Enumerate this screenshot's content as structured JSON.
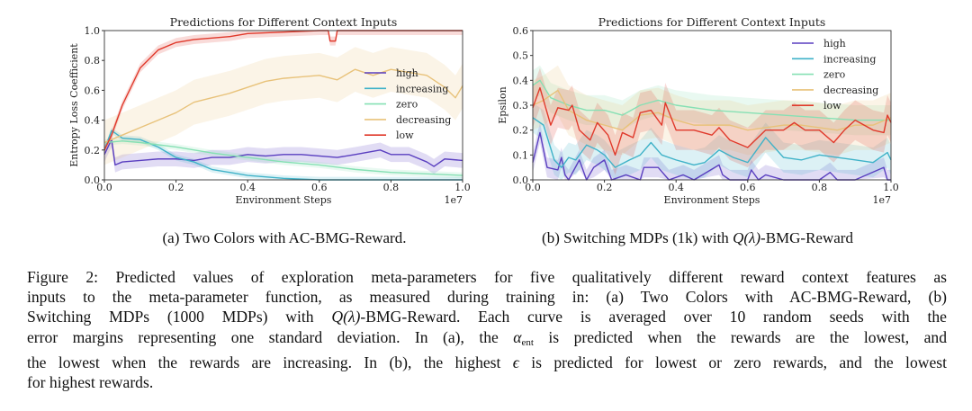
{
  "chart_data": [
    {
      "type": "line",
      "title": "Predictions for Different Context Inputs",
      "xlabel": "Environment Steps",
      "ylabel": "Entropy Loss Coefficient",
      "x_multiplier_label": "1e7",
      "xlim": [
        0,
        1.0
      ],
      "ylim": [
        0,
        1.0
      ],
      "xticks": [
        "0.0",
        "0.2",
        "0.4",
        "0.6",
        "0.8",
        "1.0"
      ],
      "yticks": [
        "0.0",
        "0.2",
        "0.4",
        "0.6",
        "0.8",
        "1.0"
      ],
      "grid": false,
      "legend_position": "center-right",
      "series": [
        {
          "name": "high",
          "color": "#5a3fc0",
          "std": 0.05,
          "x": [
            0,
            0.02,
            0.03,
            0.05,
            0.1,
            0.15,
            0.2,
            0.25,
            0.3,
            0.35,
            0.4,
            0.45,
            0.5,
            0.55,
            0.6,
            0.65,
            0.7,
            0.77,
            0.8,
            0.85,
            0.9,
            0.92,
            0.95,
            1.0
          ],
          "y": [
            0.17,
            0.27,
            0.1,
            0.12,
            0.13,
            0.14,
            0.14,
            0.13,
            0.15,
            0.15,
            0.17,
            0.16,
            0.17,
            0.17,
            0.16,
            0.15,
            0.17,
            0.2,
            0.17,
            0.17,
            0.12,
            0.09,
            0.14,
            0.13
          ]
        },
        {
          "name": "increasing",
          "color": "#3fb2c8",
          "std": 0.02,
          "x": [
            0,
            0.02,
            0.05,
            0.1,
            0.15,
            0.2,
            0.25,
            0.3,
            0.35,
            0.4,
            0.5,
            0.6,
            0.8,
            1.0
          ],
          "y": [
            0.2,
            0.33,
            0.28,
            0.27,
            0.22,
            0.15,
            0.12,
            0.07,
            0.05,
            0.03,
            0.01,
            0.0,
            0.0,
            0.0
          ]
        },
        {
          "name": "zero",
          "color": "#86e0b4",
          "std": 0.02,
          "x": [
            0,
            0.05,
            0.1,
            0.2,
            0.3,
            0.4,
            0.5,
            0.6,
            0.7,
            0.8,
            0.9,
            1.0
          ],
          "y": [
            0.25,
            0.26,
            0.25,
            0.22,
            0.18,
            0.15,
            0.12,
            0.1,
            0.07,
            0.05,
            0.04,
            0.03
          ]
        },
        {
          "name": "decreasing",
          "color": "#e8c27a",
          "std": 0.15,
          "x": [
            0,
            0.05,
            0.1,
            0.15,
            0.2,
            0.25,
            0.3,
            0.35,
            0.4,
            0.45,
            0.5,
            0.55,
            0.6,
            0.65,
            0.7,
            0.75,
            0.8,
            0.85,
            0.9,
            0.95,
            0.98,
            1.0
          ],
          "y": [
            0.25,
            0.3,
            0.35,
            0.4,
            0.45,
            0.52,
            0.55,
            0.58,
            0.62,
            0.66,
            0.68,
            0.69,
            0.7,
            0.67,
            0.74,
            0.7,
            0.74,
            0.72,
            0.7,
            0.62,
            0.55,
            0.63
          ]
        },
        {
          "name": "low",
          "color": "#e0392b",
          "std": 0.03,
          "x": [
            0,
            0.02,
            0.05,
            0.1,
            0.15,
            0.2,
            0.25,
            0.3,
            0.35,
            0.4,
            0.5,
            0.6,
            0.625,
            0.63,
            0.645,
            0.65,
            0.7,
            0.8,
            0.9,
            1.0
          ],
          "y": [
            0.2,
            0.3,
            0.5,
            0.75,
            0.87,
            0.92,
            0.94,
            0.95,
            0.96,
            0.98,
            0.99,
            1.0,
            1.0,
            0.93,
            0.93,
            1.0,
            1.0,
            1.0,
            1.0,
            1.0
          ]
        }
      ]
    },
    {
      "type": "line",
      "title": "Predictions for Different Context Inputs",
      "xlabel": "Environment Steps",
      "ylabel": "Epsilon",
      "x_multiplier_label": "1e7",
      "xlim": [
        0,
        1.0
      ],
      "ylim": [
        0,
        0.6
      ],
      "xticks": [
        "0.0",
        "0.2",
        "0.4",
        "0.6",
        "0.8",
        "1.0"
      ],
      "yticks": [
        "0.0",
        "0.1",
        "0.2",
        "0.3",
        "0.4",
        "0.5",
        "0.6"
      ],
      "grid": false,
      "legend_position": "top-right",
      "series": [
        {
          "name": "high",
          "color": "#5a3fc0",
          "std": 0.04,
          "x": [
            0,
            0.02,
            0.04,
            0.07,
            0.08,
            0.09,
            0.1,
            0.13,
            0.15,
            0.17,
            0.19,
            0.2,
            0.22,
            0.26,
            0.3,
            0.31,
            0.35,
            0.38,
            0.42,
            0.45,
            0.52,
            0.53,
            0.55,
            0.6,
            0.61,
            0.63,
            0.65,
            0.7,
            0.8,
            0.83,
            0.85,
            0.9,
            0.98,
            0.99,
            1.0
          ],
          "y": [
            0.07,
            0.19,
            0.05,
            0.04,
            0.09,
            0.02,
            0.0,
            0.08,
            0.0,
            0.05,
            0.07,
            0.08,
            0.0,
            0.02,
            0.0,
            0.05,
            0.05,
            0.0,
            0.02,
            0.0,
            0.06,
            0.02,
            0.0,
            0.0,
            0.04,
            0.0,
            0.02,
            0.0,
            0.0,
            0.03,
            0.0,
            0.0,
            0.05,
            0.0,
            0.0
          ]
        },
        {
          "name": "increasing",
          "color": "#3fb2c8",
          "std": 0.06,
          "x": [
            0,
            0.03,
            0.06,
            0.08,
            0.1,
            0.12,
            0.15,
            0.18,
            0.2,
            0.23,
            0.27,
            0.3,
            0.33,
            0.36,
            0.4,
            0.45,
            0.48,
            0.52,
            0.56,
            0.6,
            0.63,
            0.65,
            0.7,
            0.75,
            0.8,
            0.85,
            0.9,
            0.95,
            0.99,
            1.0
          ],
          "y": [
            0.25,
            0.22,
            0.08,
            0.05,
            0.09,
            0.08,
            0.14,
            0.12,
            0.1,
            0.05,
            0.08,
            0.1,
            0.15,
            0.1,
            0.08,
            0.06,
            0.07,
            0.12,
            0.09,
            0.07,
            0.13,
            0.17,
            0.09,
            0.08,
            0.1,
            0.09,
            0.08,
            0.07,
            0.11,
            0.08
          ]
        },
        {
          "name": "zero",
          "color": "#86e0b4",
          "std": 0.06,
          "x": [
            0,
            0.02,
            0.05,
            0.1,
            0.15,
            0.2,
            0.25,
            0.3,
            0.35,
            0.4,
            0.5,
            0.6,
            0.7,
            0.8,
            0.9,
            1.0
          ],
          "y": [
            0.38,
            0.4,
            0.33,
            0.3,
            0.28,
            0.28,
            0.26,
            0.3,
            0.32,
            0.3,
            0.28,
            0.27,
            0.26,
            0.25,
            0.24,
            0.24
          ]
        },
        {
          "name": "decreasing",
          "color": "#e8c27a",
          "std": 0.1,
          "x": [
            0,
            0.03,
            0.07,
            0.1,
            0.15,
            0.2,
            0.25,
            0.3,
            0.35,
            0.4,
            0.45,
            0.5,
            0.55,
            0.6,
            0.65,
            0.7,
            0.75,
            0.8,
            0.85,
            0.9,
            0.95,
            1.0
          ],
          "y": [
            0.3,
            0.32,
            0.36,
            0.28,
            0.24,
            0.22,
            0.2,
            0.26,
            0.27,
            0.24,
            0.22,
            0.22,
            0.22,
            0.2,
            0.21,
            0.22,
            0.22,
            0.21,
            0.2,
            0.22,
            0.22,
            0.25
          ]
        },
        {
          "name": "low",
          "color": "#e0392b",
          "std": 0.08,
          "x": [
            0,
            0.02,
            0.05,
            0.07,
            0.1,
            0.11,
            0.13,
            0.16,
            0.18,
            0.21,
            0.23,
            0.25,
            0.28,
            0.3,
            0.33,
            0.36,
            0.37,
            0.4,
            0.45,
            0.5,
            0.52,
            0.55,
            0.6,
            0.65,
            0.7,
            0.73,
            0.76,
            0.8,
            0.84,
            0.87,
            0.9,
            0.95,
            0.98,
            0.99,
            1.0
          ],
          "y": [
            0.29,
            0.37,
            0.22,
            0.29,
            0.28,
            0.3,
            0.2,
            0.16,
            0.23,
            0.18,
            0.1,
            0.19,
            0.17,
            0.27,
            0.28,
            0.22,
            0.31,
            0.2,
            0.2,
            0.18,
            0.21,
            0.16,
            0.13,
            0.2,
            0.2,
            0.23,
            0.2,
            0.2,
            0.15,
            0.2,
            0.24,
            0.2,
            0.19,
            0.26,
            0.23
          ]
        }
      ]
    }
  ],
  "subcaptions": {
    "a": "(a) Two Colors with AC-BMG-Reward.",
    "b_prefix": "(b) Switching MDPs (1k) with ",
    "b_math": "Q(λ)",
    "b_suffix": "-BMG-Reward"
  },
  "caption": {
    "lines": [
      [
        {
          "t": "Figure 2: Predicted values of exploration meta-parameters for five qualitatively different reward context features as"
        }
      ],
      [
        {
          "t": "inputs to the meta-parameter function, as measured during training in: (a) Two Colors with AC-BMG-Reward, (b)"
        }
      ],
      [
        {
          "t": "Switching MDPs (1000 MDPs) with "
        },
        {
          "t": "Q(λ)",
          "i": true
        },
        {
          "t": "-BMG-Reward.  Each curve is averaged over 10 random seeds with the"
        }
      ],
      [
        {
          "t": "error margins representing one standard deviation.  In (a), the "
        },
        {
          "t": "α",
          "i": true
        },
        {
          "t": "ent",
          "sub": true
        },
        {
          "t": " is predicted when the rewards are the lowest, and"
        }
      ],
      [
        {
          "t": "the lowest when the rewards are increasing.  In (b), the highest "
        },
        {
          "t": "ϵ",
          "i": true
        },
        {
          "t": " is predicted for lowest or zero rewards, and the lowest"
        }
      ],
      [
        {
          "t": "for highest rewards."
        }
      ]
    ]
  }
}
